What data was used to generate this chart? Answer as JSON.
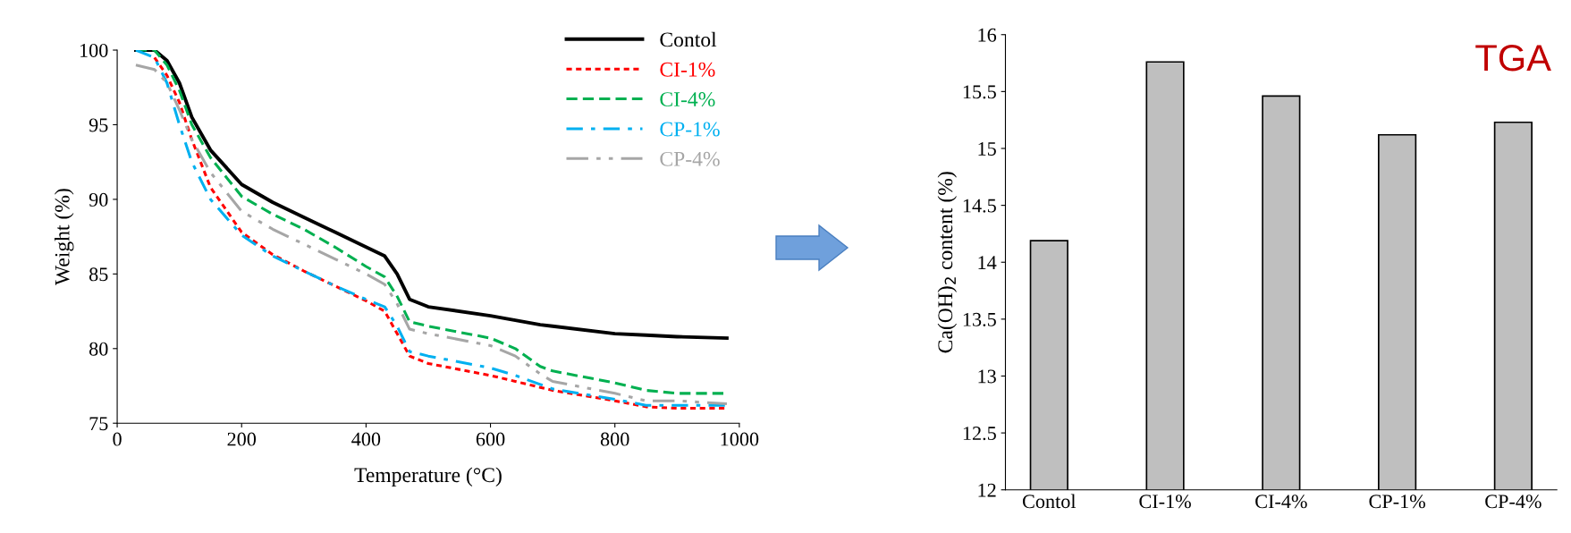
{
  "chart_data": [
    {
      "type": "line",
      "xlabel": "Temperature (°C)",
      "ylabel": "Weight (%)",
      "xlim": [
        0,
        1000
      ],
      "xticks": [
        0,
        200,
        400,
        600,
        800,
        1000
      ],
      "ylim": [
        75,
        100
      ],
      "yticks": [
        75,
        80,
        85,
        90,
        95,
        100
      ],
      "grid": false,
      "legend": "top right",
      "x": [
        30,
        60,
        80,
        100,
        120,
        150,
        200,
        250,
        300,
        350,
        400,
        430,
        450,
        470,
        500,
        600,
        640,
        680,
        700,
        800,
        850,
        900,
        980
      ],
      "series": [
        {
          "name": "Contol",
          "color": "#000000",
          "line_style": "solid",
          "values": [
            100,
            100,
            99.3,
            97.8,
            95.5,
            93.3,
            91,
            89.8,
            88.8,
            87.8,
            86.8,
            86.2,
            85,
            83.3,
            82.8,
            82.2,
            81.9,
            81.6,
            81.5,
            81,
            80.9,
            80.8,
            80.7
          ]
        },
        {
          "name": "CI-1%",
          "color": "#ff0000",
          "line_style": "dotted",
          "values": [
            null,
            99.5,
            98.3,
            96.5,
            94,
            90.8,
            87.8,
            86.3,
            85.2,
            84.2,
            83.2,
            82.5,
            81,
            79.5,
            79,
            78.2,
            77.8,
            77.4,
            77.2,
            76.5,
            76.1,
            76,
            76
          ]
        },
        {
          "name": "CI-4%",
          "color": "#00b050",
          "line_style": "dashed",
          "values": [
            100,
            100,
            99,
            97.3,
            95,
            92.8,
            90.2,
            89,
            88,
            86.8,
            85.5,
            84.8,
            83.5,
            81.8,
            81.5,
            80.7,
            80,
            78.8,
            78.5,
            77.7,
            77.2,
            77,
            77
          ]
        },
        {
          "name": "CP-1%",
          "color": "#00b0f0",
          "line_style": "dashdot",
          "values": [
            100,
            99.5,
            97.8,
            95,
            92.5,
            90,
            87.6,
            86.2,
            85.2,
            84.2,
            83.3,
            82.8,
            81.5,
            79.8,
            79.5,
            78.7,
            78.2,
            77.6,
            77.3,
            76.6,
            76.2,
            76.2,
            76.2
          ]
        },
        {
          "name": "CP-4%",
          "color": "#a6a6a6",
          "line_style": "dashdotdot",
          "values": [
            99,
            98.7,
            97.8,
            96,
            94,
            91.8,
            89.2,
            88,
            87,
            86,
            85,
            84.3,
            83,
            81.3,
            81,
            80.2,
            79.5,
            78.3,
            77.8,
            77,
            76.5,
            76.5,
            76.3
          ]
        }
      ]
    },
    {
      "type": "bar",
      "ylabel": "Ca(OH)$_{2}$ content (%)",
      "categories": [
        "Contol",
        "CI-1%",
        "CI-4%",
        "CP-1%",
        "CP-4%"
      ],
      "values": [
        14.19,
        15.76,
        15.46,
        15.12,
        15.23
      ],
      "color": "#bfbfbf",
      "ylim": [
        12,
        16
      ],
      "yticks": [
        12,
        {
          "value": 12.5,
          "label": "12.5"
        },
        13,
        {
          "value": 13.5,
          "label": "13.5"
        },
        14,
        {
          "value": 14.5,
          "label": "14.5"
        },
        15,
        {
          "value": 15.5,
          "label": "15.5"
        },
        16
      ],
      "grid": false,
      "annotations": [
        "TGA"
      ]
    }
  ]
}
